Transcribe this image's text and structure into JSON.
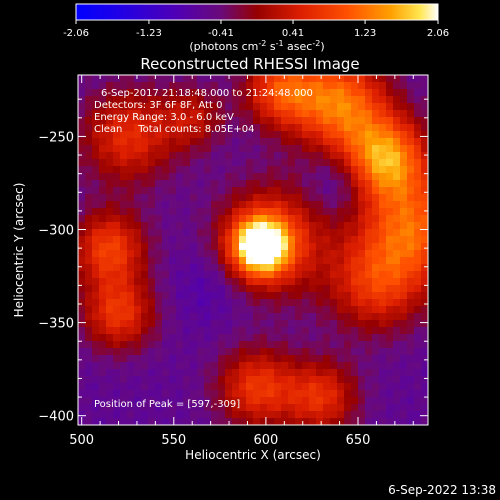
{
  "chart_data": {
    "type": "heatmap",
    "title": "Reconstructed RHESSI Image",
    "xlabel": "Heliocentric X (arcsec)",
    "ylabel": "Heliocentric Y (arcsec)",
    "xlim": [
      498,
      688
    ],
    "ylim": [
      -405,
      -217
    ],
    "x_ticks": [
      500,
      550,
      600,
      650
    ],
    "y_ticks": [
      -250,
      -300,
      -350,
      -400
    ],
    "colorbar": {
      "min": -2.06,
      "max": 2.06,
      "ticks": [
        "-2.06",
        "-1.23",
        "-0.41",
        "0.41",
        "1.23",
        "2.06"
      ],
      "units_prefix": "(photons cm",
      "units_exp1": "-2",
      "units_mid1": " s",
      "units_exp2": "-1",
      "units_mid2": " asec",
      "units_exp3": "-2",
      "units_suffix": ")"
    },
    "info_lines": [
      "6-Sep-2017 21:18:48.000 to 21:24:48.000",
      "Detectors: 3F 6F 8F, Att 0",
      "Energy Range: 3.0 - 6.0 keV",
      "Clean     Total counts: 8.05E+04"
    ],
    "peak_label": "Position of Peak = [597,-309]",
    "peak": {
      "x": 597,
      "y": -309,
      "value": 2.06
    },
    "background_level": -0.6,
    "sources": [
      {
        "x": 597,
        "y": -309,
        "amp": 2.6,
        "sigma": 11
      },
      {
        "x": 605,
        "y": -305,
        "amp": 1.2,
        "sigma": 22
      },
      {
        "x": 665,
        "y": -262,
        "amp": 2.0,
        "sigma": 16
      },
      {
        "x": 680,
        "y": -300,
        "amp": 1.6,
        "sigma": 20
      },
      {
        "x": 640,
        "y": -232,
        "amp": 1.8,
        "sigma": 18
      },
      {
        "x": 608,
        "y": -225,
        "amp": 1.4,
        "sigma": 14
      },
      {
        "x": 660,
        "y": -330,
        "amp": 1.2,
        "sigma": 18
      },
      {
        "x": 515,
        "y": -310,
        "amp": 1.4,
        "sigma": 14
      },
      {
        "x": 520,
        "y": -345,
        "amp": 1.3,
        "sigma": 14
      },
      {
        "x": 525,
        "y": -250,
        "amp": 1.2,
        "sigma": 18
      },
      {
        "x": 595,
        "y": -385,
        "amp": 1.3,
        "sigma": 15
      },
      {
        "x": 630,
        "y": -390,
        "amp": 1.2,
        "sigma": 14
      },
      {
        "x": 560,
        "y": -240,
        "amp": 0.8,
        "sigma": 12
      },
      {
        "x": 640,
        "y": -275,
        "amp": -0.5,
        "sigma": 12
      },
      {
        "x": 570,
        "y": -330,
        "amp": -0.3,
        "sigma": 14
      }
    ],
    "grid": false,
    "legend": "none"
  },
  "timestamp": "6-Sep-2022 13:38"
}
